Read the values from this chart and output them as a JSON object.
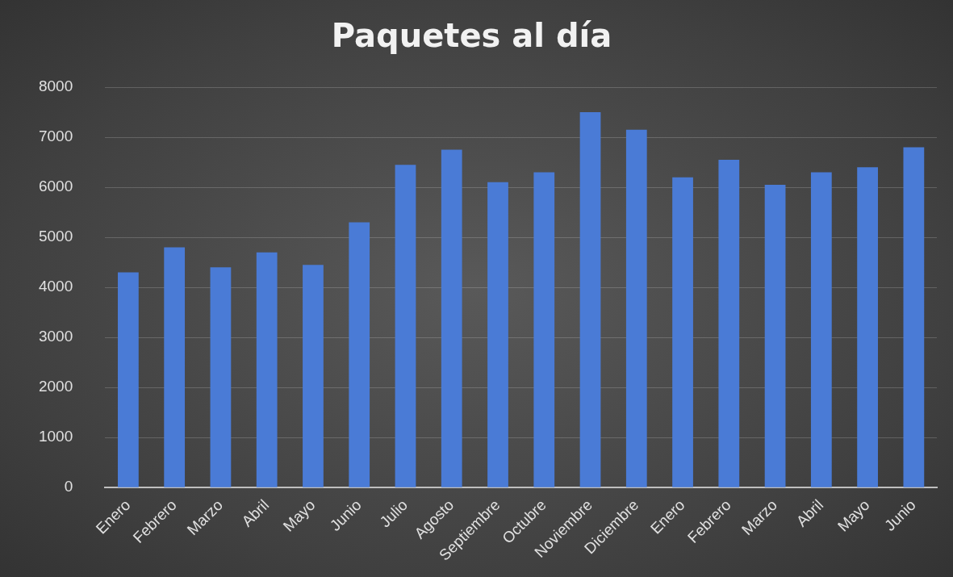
{
  "chart_data": {
    "type": "bar",
    "title": "Paquetes al día",
    "categories": [
      "Enero",
      "Febrero",
      "Marzo",
      "Abril",
      "Mayo",
      "Junio",
      "Julio",
      "Agosto",
      "Septiembre",
      "Octubre",
      "Noviembre",
      "Diciembre",
      "Enero",
      "Febrero",
      "Marzo",
      "Abril",
      "Mayo",
      "Junio"
    ],
    "values": [
      4300,
      4800,
      4400,
      4700,
      4450,
      5300,
      6450,
      6750,
      6100,
      6300,
      7500,
      7150,
      6200,
      6550,
      6050,
      6300,
      6400,
      6800
    ],
    "color": "#4a7bd6",
    "ylim": [
      0,
      8000
    ],
    "yticks": [
      0,
      1000,
      2000,
      3000,
      4000,
      5000,
      6000,
      7000,
      8000
    ],
    "grid": "y",
    "legend": false
  }
}
